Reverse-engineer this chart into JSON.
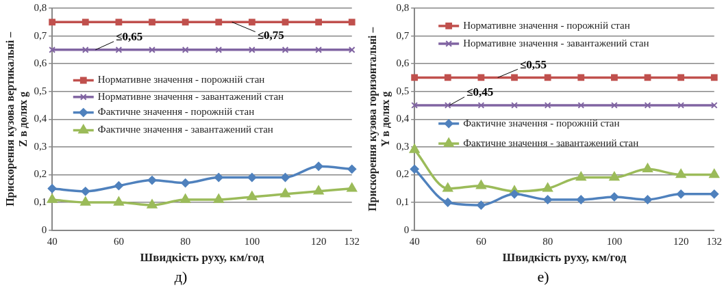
{
  "chart_data": [
    {
      "type": "line",
      "xlabel": "Швидкість руху, км/год",
      "ylabel": "Прискорення кузова вертикальні –\nZ в долях g",
      "categories": [
        "40",
        null,
        "60",
        null,
        "80",
        null,
        "100",
        null,
        "120",
        "132"
      ],
      "series": [
        {
          "name": "Нормативне значення - порожній стан",
          "color": "#c0504d",
          "marker": "square",
          "values": [
            0.75,
            0.75,
            0.75,
            0.75,
            0.75,
            0.75,
            0.75,
            0.75,
            0.75,
            0.75
          ]
        },
        {
          "name": "Нормативне значення - завантажений стан",
          "color": "#8064a2",
          "marker": "cross",
          "values": [
            0.65,
            0.65,
            0.65,
            0.65,
            0.65,
            0.65,
            0.65,
            0.65,
            0.65,
            0.65
          ]
        },
        {
          "name": "Фактичне значення - порожній стан",
          "color": "#4f81bd",
          "marker": "diamond",
          "values": [
            0.15,
            0.14,
            0.16,
            0.18,
            0.17,
            0.19,
            0.19,
            0.19,
            0.23,
            0.22
          ]
        },
        {
          "name": "Фактичне значення - завантажений стан",
          "color": "#9bbb59",
          "marker": "triangle",
          "values": [
            0.11,
            0.1,
            0.1,
            0.09,
            0.11,
            0.11,
            0.12,
            0.13,
            0.14,
            0.15
          ]
        }
      ],
      "ylim": [
        0,
        0.8
      ],
      "yticks": [
        0,
        {
          "value": 0.1,
          "label": "0,1"
        },
        {
          "value": 0.2,
          "label": "0,2"
        },
        {
          "value": 0.3,
          "label": "0,3"
        },
        {
          "value": 0.4,
          "label": "0,4"
        },
        {
          "value": 0.5,
          "label": "0,5"
        },
        {
          "value": 0.6,
          "label": "0,6"
        },
        {
          "value": 0.7,
          "label": "0,7"
        },
        {
          "value": 0.8,
          "label": "0,8"
        }
      ],
      "grid": "y",
      "legend": "left",
      "annotations": [
        {
          "text": "≤0,65",
          "y": 0.65
        },
        {
          "text": "≤0,75",
          "y": 0.75
        },
        "д)"
      ]
    },
    {
      "type": "line",
      "xlabel": "Швидкість руху, км/год",
      "ylabel": "Прискорення кузова горизонтальні –\nY в долях g",
      "categories": [
        "40",
        null,
        "60",
        null,
        "80",
        null,
        "100",
        null,
        "120",
        "132"
      ],
      "series": [
        {
          "name": "Нормативне значення - порожній стан",
          "color": "#c0504d",
          "marker": "square",
          "values": [
            0.55,
            0.55,
            0.55,
            0.55,
            0.55,
            0.55,
            0.55,
            0.55,
            0.55,
            0.55
          ]
        },
        {
          "name": "Нормативне значення - завантажений стан",
          "color": "#8064a2",
          "marker": "cross",
          "values": [
            0.45,
            0.45,
            0.45,
            0.45,
            0.45,
            0.45,
            0.45,
            0.45,
            0.45,
            0.45
          ]
        },
        {
          "name": "Фактичне значення - порожній стан",
          "color": "#4f81bd",
          "marker": "diamond",
          "values": [
            0.22,
            0.1,
            0.09,
            0.13,
            0.11,
            0.11,
            0.12,
            0.11,
            0.13,
            0.13
          ]
        },
        {
          "name": "Фактичне значення - завантажений стан",
          "color": "#9bbb59",
          "marker": "triangle",
          "values": [
            0.29,
            0.15,
            0.16,
            0.14,
            0.15,
            0.19,
            0.19,
            0.22,
            0.2,
            0.2
          ]
        }
      ],
      "ylim": [
        0,
        0.8
      ],
      "yticks": [
        0,
        {
          "value": 0.1,
          "label": "0,1"
        },
        {
          "value": 0.2,
          "label": "0,2"
        },
        {
          "value": 0.3,
          "label": "0,3"
        },
        {
          "value": 0.4,
          "label": "0,4"
        },
        {
          "value": 0.5,
          "label": "0,5"
        },
        {
          "value": 0.6,
          "label": "0,6"
        },
        {
          "value": 0.7,
          "label": "0,7"
        },
        {
          "value": 0.8,
          "label": "0,8"
        }
      ],
      "grid": "y",
      "legend": "left",
      "annotations": [
        {
          "text": "≤0,55",
          "y": 0.55
        },
        {
          "text": "≤0,45",
          "y": 0.45
        },
        "е)"
      ]
    }
  ]
}
